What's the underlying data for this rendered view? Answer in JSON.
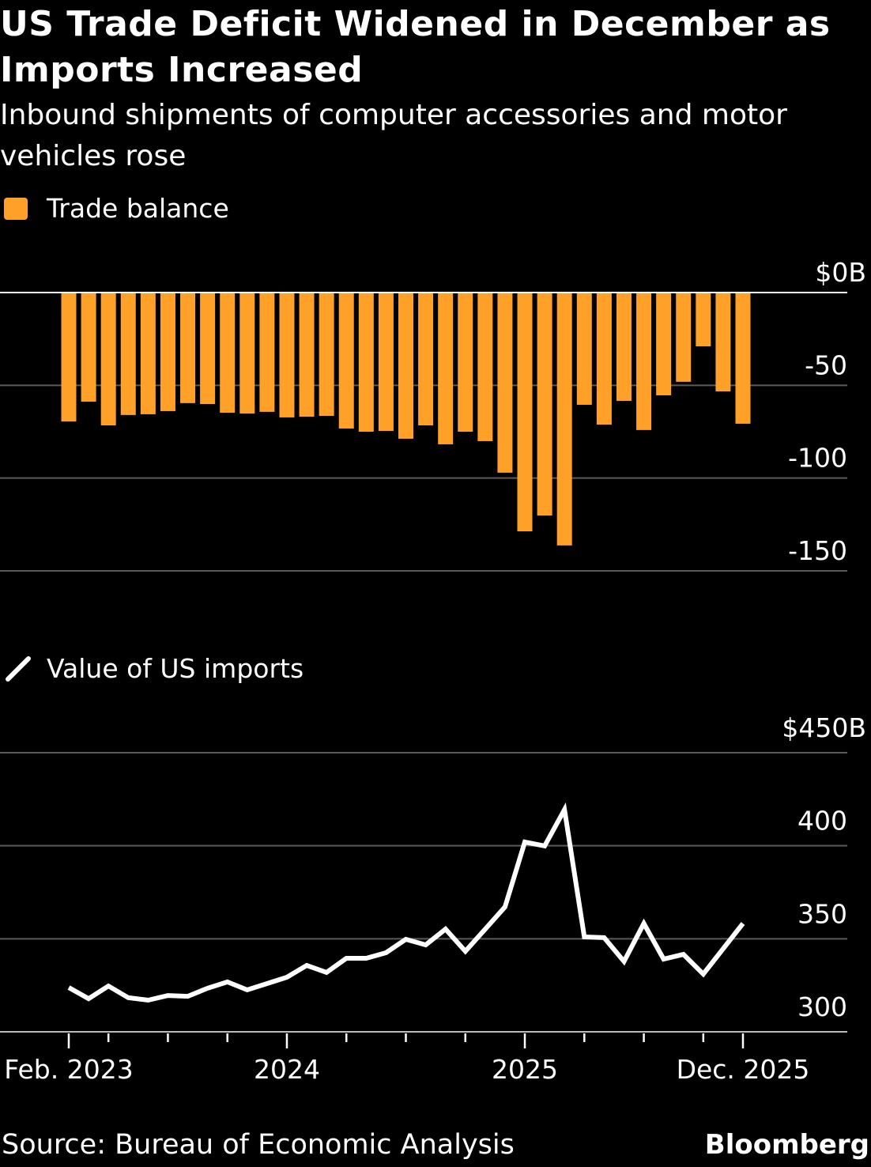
{
  "title": "US Trade Deficit Widened in December as Imports Increased",
  "subtitle": "Inbound shipments of computer accessories and motor vehicles rose",
  "source": "Source: Bureau of Economic Analysis",
  "logo": "Bloomberg",
  "chart_data": [
    {
      "type": "bar",
      "legend": "Trade balance",
      "color": "#ffa028",
      "y_ticks": [
        "$0B",
        "-50",
        "-100",
        "-150"
      ],
      "ylim": [
        -150,
        0
      ],
      "grid": true,
      "x": [
        "Feb 2023",
        "Mar 2023",
        "Apr 2023",
        "May 2023",
        "Jun 2023",
        "Jul 2023",
        "Aug 2023",
        "Sep 2023",
        "Oct 2023",
        "Nov 2023",
        "Dec 2023",
        "Jan 2024",
        "Feb 2024",
        "Mar 2024",
        "Apr 2024",
        "May 2024",
        "Jun 2024",
        "Jul 2024",
        "Aug 2024",
        "Sep 2024",
        "Oct 2024",
        "Nov 2024",
        "Dec 2024",
        "Jan 2025",
        "Feb 2025",
        "Mar 2025",
        "Apr 2025",
        "May 2025",
        "Jun 2025",
        "Jul 2025",
        "Aug 2025",
        "Sep 2025",
        "Oct 2025",
        "Nov 2025",
        "Dec 2025"
      ],
      "values": [
        -69.5,
        -58.8,
        -71.6,
        -66.0,
        -65.6,
        -63.9,
        -59.6,
        -60.1,
        -64.8,
        -65.2,
        -64.3,
        -67.3,
        -66.9,
        -66.5,
        -73.3,
        -75.0,
        -74.6,
        -78.8,
        -71.6,
        -81.8,
        -75.0,
        -80.1,
        -97.1,
        -128.7,
        -120.2,
        -136.3,
        -60.5,
        -71.2,
        -58.4,
        -74.1,
        -55.4,
        -48.1,
        -29.0,
        -53.3,
        -70.7
      ]
    },
    {
      "type": "line",
      "legend": "Value of US imports",
      "color": "#ffffff",
      "y_ticks": [
        "$450B",
        "400",
        "350",
        "300"
      ],
      "ylim": [
        300,
        450
      ],
      "grid": true,
      "x_tick_labels": [
        "Feb. 2023",
        "2024",
        "2025",
        "Dec. 2025"
      ],
      "x": [
        "Feb 2023",
        "Mar 2023",
        "Apr 2023",
        "May 2023",
        "Jun 2023",
        "Jul 2023",
        "Aug 2023",
        "Sep 2023",
        "Oct 2023",
        "Nov 2023",
        "Dec 2023",
        "Jan 2024",
        "Feb 2024",
        "Mar 2024",
        "Apr 2024",
        "May 2024",
        "Jun 2024",
        "Jul 2024",
        "Aug 2024",
        "Sep 2024",
        "Oct 2024",
        "Nov 2024",
        "Dec 2024",
        "Jan 2025",
        "Feb 2025",
        "Mar 2025",
        "Apr 2025",
        "May 2025",
        "Jun 2025",
        "Jul 2025",
        "Aug 2025",
        "Sep 2025",
        "Oct 2025",
        "Nov 2025",
        "Dec 2025"
      ],
      "values": [
        323.8,
        317.8,
        324.6,
        318.3,
        317.0,
        319.5,
        319.1,
        323.4,
        326.8,
        322.5,
        325.9,
        329.3,
        335.7,
        331.9,
        339.5,
        339.5,
        342.5,
        349.7,
        346.7,
        355.2,
        343.3,
        355.2,
        367.1,
        402.0,
        399.9,
        419.4,
        351.0,
        350.6,
        337.8,
        358.2,
        339.1,
        341.6,
        331.0,
        344.6,
        358.2
      ]
    }
  ]
}
